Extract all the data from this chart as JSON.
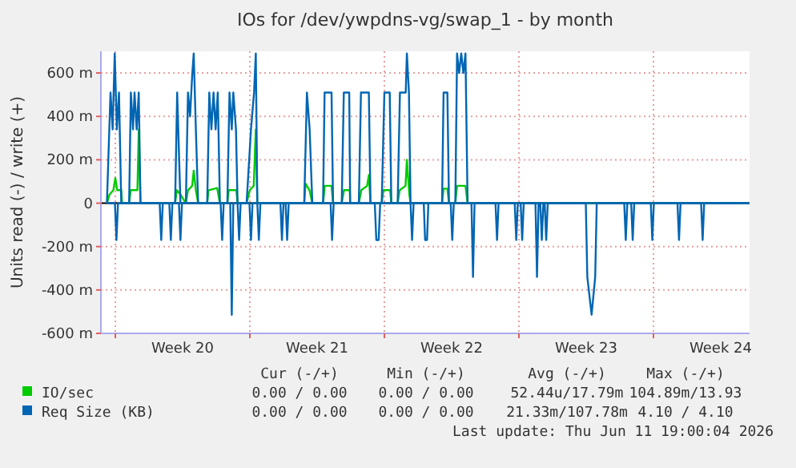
{
  "chart_data": {
    "type": "line",
    "title": "IOs for /dev/ywpdns-vg/swap_1 - by month",
    "ylabel": "Units read (-) / write (+)",
    "xlim": [
      "2026-05-10T06:00",
      "2026-06-13T00:00"
    ],
    "xticks": [
      {
        "value": "2026-05-11",
        "label": null
      },
      {
        "value": "2026-05-14T12:00",
        "label": "Week 20"
      },
      {
        "value": "2026-05-18",
        "label": null
      },
      {
        "value": "2026-05-21T12:00",
        "label": "Week 21"
      },
      {
        "value": "2026-05-25",
        "label": null
      },
      {
        "value": "2026-05-28T12:00",
        "label": "Week 22"
      },
      {
        "value": "2026-06-01",
        "label": null
      },
      {
        "value": "2026-06-04T12:00",
        "label": "Week 23"
      },
      {
        "value": "2026-06-08",
        "label": null
      },
      {
        "value": "2026-06-11T12:00",
        "label": "Week 24"
      }
    ],
    "ylim": [
      -600,
      700
    ],
    "yticks": [
      {
        "value": -600,
        "label": "-600 m"
      },
      {
        "value": -400,
        "label": "-400 m"
      },
      {
        "value": -200,
        "label": "-200 m"
      },
      0,
      {
        "value": 200,
        "label": "200 m"
      },
      {
        "value": 400,
        "label": "400 m"
      },
      {
        "value": 600,
        "label": "600 m"
      }
    ],
    "grid": true,
    "legend": "bottom",
    "marker": "none",
    "line_style": "solid",
    "series": [
      {
        "name": "IO/sec",
        "color": "#00cc00",
        "x": [
          "2026-05-10T13:30",
          "2026-05-10T16:50",
          "2026-05-10T21:35",
          "2026-05-11T00:00",
          "2026-05-11T02:25",
          "2026-05-11T07:25",
          "2026-05-11T08:25",
          "2026-05-11T17:15",
          "2026-05-11T19:10",
          "2026-05-12T03:35",
          "2026-05-12T05:15",
          "2026-05-12T07:25",
          "2026-05-14T02:40",
          "2026-05-14T04:50",
          "2026-05-14T09:20",
          "2026-05-14T16:05",
          "2026-05-14T18:45",
          "2026-05-15T00:00",
          "2026-05-15T01:55",
          "2026-05-15T04:35",
          "2026-05-15T07:25",
          "2026-05-15T18:45",
          "2026-05-15T20:25",
          "2026-05-16T07:10",
          "2026-05-16T10:35",
          "2026-05-16T19:55",
          "2026-05-16T21:35",
          "2026-05-17T07:10",
          "2026-05-17T08:40",
          "2026-05-17T19:55",
          "2026-05-18T00:00",
          "2026-05-18T04:50",
          "2026-05-18T07:25",
          "2026-05-18T09:20",
          "2026-05-20T19:55",
          "2026-05-20T21:35",
          "2026-05-21T02:25",
          "2026-05-21T06:00",
          "2026-05-21T19:25",
          "2026-05-21T21:35",
          "2026-05-22T06:00",
          "2026-05-22T07:55",
          "2026-05-22T18:45",
          "2026-05-22T21:35",
          "2026-05-23T04:50",
          "2026-05-23T05:15",
          "2026-05-23T16:05",
          "2026-05-23T19:10",
          "2026-05-24T02:25",
          "2026-05-24T04:35",
          "2026-05-24T06:40",
          "2026-05-24T20:40",
          "2026-05-24T22:50",
          "2026-05-25T07:10",
          "2026-05-25T08:40",
          "2026-05-25T16:35",
          "2026-05-25T19:10",
          "2026-05-26T02:25",
          "2026-05-26T04:05",
          "2026-05-26T07:10",
          "2026-05-26T08:40",
          "2026-05-28T00:00",
          "2026-05-28T01:55",
          "2026-05-28T06:40",
          "2026-05-28T08:40",
          "2026-05-28T16:35",
          "2026-05-28T18:45",
          "2026-05-29T05:15",
          "2026-05-29T07:55",
          "2026-06-13T00:00"
        ],
        "values": [
          0,
          40,
          60,
          116,
          60,
          60,
          0,
          0,
          60,
          60,
          340,
          0,
          0,
          60,
          40,
          0,
          60,
          80,
          150,
          60,
          0,
          0,
          60,
          70,
          0,
          0,
          60,
          60,
          0,
          0,
          60,
          80,
          340,
          0,
          0,
          90,
          60,
          0,
          0,
          80,
          80,
          0,
          0,
          60,
          60,
          0,
          0,
          60,
          80,
          130,
          0,
          0,
          60,
          60,
          0,
          0,
          60,
          80,
          200,
          40,
          0,
          0,
          67,
          67,
          0,
          0,
          80,
          80,
          0,
          0
        ]
      },
      {
        "name": "Req Size (KB)",
        "color": "#0066b3",
        "x": [
          "2026-05-10T13:30",
          "2026-05-10T18:00",
          "2026-05-10T20:40",
          "2026-05-10T23:15",
          "2026-05-11T01:55",
          "2026-05-11T04:35",
          "2026-05-11T07:25",
          "2026-05-11T17:15",
          "2026-05-11T19:25",
          "2026-05-11T22:05",
          "2026-05-12T00:00",
          "2026-05-12T02:40",
          "2026-05-12T05:15",
          "2026-05-12T07:25",
          "2026-05-14T02:40",
          "2026-05-14T05:15",
          "2026-05-14T09:20",
          "2026-05-14T16:05",
          "2026-05-14T18:45",
          "2026-05-14T21:20",
          "2026-05-15T00:00",
          "2026-05-15T01:55",
          "2026-05-15T04:35",
          "2026-05-15T07:25",
          "2026-05-15T18:45",
          "2026-05-15T21:20",
          "2026-05-16T00:00",
          "2026-05-16T02:40",
          "2026-05-16T05:15",
          "2026-05-16T07:55",
          "2026-05-16T10:35",
          "2026-05-16T19:55",
          "2026-05-16T22:35",
          "2026-05-17T01:25",
          "2026-05-17T03:20",
          "2026-05-17T06:40",
          "2026-05-17T08:40",
          "2026-05-17T19:55",
          "2026-05-18T01:25",
          "2026-05-18T05:15",
          "2026-05-18T07:25",
          "2026-05-18T09:20",
          "2026-05-20T19:55",
          "2026-05-20T23:15",
          "2026-05-21T02:40",
          "2026-05-21T06:00",
          "2026-05-21T19:25",
          "2026-05-21T21:20",
          "2026-05-22T06:00",
          "2026-05-22T07:55",
          "2026-05-22T18:45",
          "2026-05-22T21:20",
          "2026-05-23T04:05",
          "2026-05-23T05:15",
          "2026-05-23T16:05",
          "2026-05-23T18:45",
          "2026-05-24T04:35",
          "2026-05-24T06:40",
          "2026-05-24T20:40",
          "2026-05-25T00:00",
          "2026-05-25T06:40",
          "2026-05-25T08:40",
          "2026-05-25T16:35",
          "2026-05-25T19:25",
          "2026-05-26T02:40",
          "2026-05-26T04:05",
          "2026-05-26T06:40",
          "2026-05-26T08:40",
          "2026-05-28T00:00",
          "2026-05-28T01:55",
          "2026-05-28T06:40",
          "2026-05-28T08:40",
          "2026-05-28T16:35",
          "2026-05-28T18:45",
          "2026-05-28T21:20",
          "2026-05-29T00:00",
          "2026-05-29T02:40",
          "2026-05-29T05:15",
          "2026-05-29T07:55",
          "2026-06-13T00:00"
        ],
        "values": [
          0,
          510,
          340,
          690,
          340,
          510,
          0,
          0,
          510,
          340,
          510,
          340,
          510,
          0,
          0,
          510,
          0,
          0,
          510,
          400,
          590,
          690,
          340,
          0,
          0,
          510,
          340,
          510,
          340,
          510,
          0,
          0,
          510,
          340,
          510,
          340,
          0,
          0,
          340,
          510,
          690,
          0,
          0,
          510,
          340,
          0,
          0,
          510,
          510,
          0,
          0,
          510,
          510,
          0,
          0,
          510,
          510,
          0,
          0,
          510,
          510,
          0,
          0,
          510,
          510,
          690,
          510,
          0,
          0,
          510,
          510,
          0,
          0,
          690,
          600,
          690,
          600,
          690,
          0,
          0
        ]
      },
      {
        "color": "#0066b3",
        "x": [
          "2026-05-10T13:30",
          "2026-05-10T23:30",
          "2026-05-11T01:25",
          "2026-05-11T03:20",
          "2026-05-13T07:25",
          "2026-05-13T09:20",
          "2026-05-13T11:15",
          "2026-05-13T19:25",
          "2026-05-13T21:20",
          "2026-05-13T23:15",
          "2026-05-14T07:25",
          "2026-05-14T09:20",
          "2026-05-14T11:15",
          "2026-05-16T11:30",
          "2026-05-16T13:25",
          "2026-05-16T15:20",
          "2026-05-16T23:30",
          "2026-05-17T01:25",
          "2026-05-17T03:20",
          "2026-05-17T08:40",
          "2026-05-17T10:35",
          "2026-05-17T12:30",
          "2026-05-17T23:30",
          "2026-05-18T01:25",
          "2026-05-18T03:20",
          "2026-05-18T09:20",
          "2026-05-18T11:15",
          "2026-05-18T13:10",
          "2026-05-19T14:10",
          "2026-05-19T16:05",
          "2026-05-19T18:00",
          "2026-05-19T20:40",
          "2026-05-19T22:35",
          "2026-05-20T00:30",
          "2026-05-22T04:50",
          "2026-05-22T06:40",
          "2026-05-22T08:40",
          "2026-05-24T12:00",
          "2026-05-24T13:55",
          "2026-05-24T16:50",
          "2026-05-24T18:45",
          "2026-05-26T08:40",
          "2026-05-26T10:35",
          "2026-05-26T12:30",
          "2026-05-27T01:10",
          "2026-05-27T02:50",
          "2026-05-27T05:15",
          "2026-05-27T06:55",
          "2026-05-28T10:50",
          "2026-05-28T12:45",
          "2026-05-28T14:40",
          "2026-05-29T12:45",
          "2026-05-29T14:40",
          "2026-05-29T16:35",
          "2026-05-30T18:45",
          "2026-05-30T20:40",
          "2026-05-30T22:35",
          "2026-05-31T18:45",
          "2026-05-31T20:40",
          "2026-05-31T22:35",
          "2026-06-01T02:10",
          "2026-06-01T04:05",
          "2026-06-01T06:00",
          "2026-06-01T20:40",
          "2026-06-01T22:35",
          "2026-06-02T00:30",
          "2026-06-02T02:40",
          "2026-06-02T04:35",
          "2026-06-02T06:30",
          "2026-06-02T08:10",
          "2026-06-02T10:05",
          "2026-06-02T12:00",
          "2026-06-04T11:30",
          "2026-06-04T13:25",
          "2026-06-04T18:45",
          "2026-06-04T23:15",
          "2026-06-05T01:10",
          "2026-06-06T11:30",
          "2026-06-06T13:25",
          "2026-06-06T15:20",
          "2026-06-06T20:10",
          "2026-06-06T22:05",
          "2026-06-07T00:00",
          "2026-06-07T20:40",
          "2026-06-07T22:35",
          "2026-06-08T00:30",
          "2026-06-09T06:00",
          "2026-06-09T07:55",
          "2026-06-09T09:50",
          "2026-06-10T11:30",
          "2026-06-10T13:25",
          "2026-06-10T15:20",
          "2026-06-13T00:00"
        ],
        "values": [
          0,
          0,
          -170,
          0,
          0,
          -170,
          0,
          0,
          -170,
          0,
          0,
          -170,
          0,
          0,
          -170,
          0,
          0,
          -514,
          0,
          0,
          -170,
          0,
          0,
          -170,
          0,
          0,
          -170,
          0,
          0,
          -170,
          0,
          0,
          -170,
          0,
          0,
          -170,
          0,
          0,
          -170,
          -170,
          0,
          0,
          -170,
          0,
          0,
          -170,
          -170,
          0,
          0,
          -170,
          0,
          0,
          -340,
          0,
          0,
          -170,
          0,
          0,
          -170,
          0,
          0,
          -170,
          0,
          0,
          -340,
          0,
          0,
          -170,
          0,
          0,
          -170,
          0,
          0,
          -340,
          -514,
          -340,
          0,
          0,
          -170,
          0,
          0,
          -170,
          0,
          0,
          -170,
          0,
          0,
          -170,
          0,
          0,
          -170,
          0,
          0
        ]
      }
    ],
    "annotations": [
      "Cur (-/+)",
      "Min (-/+)",
      "Avg (-/+)",
      "Max (-/+)",
      "0.00 / 0.00",
      "0.00 / 0.00",
      "52.44u/17.79m",
      "104.89m/13.93",
      "0.00 / 0.00",
      "0.00 / 0.00",
      "21.33m/107.78m",
      "4.10 / 4.10",
      "Last update:  Thu Jun 11 19:00:04 2026"
    ]
  }
}
